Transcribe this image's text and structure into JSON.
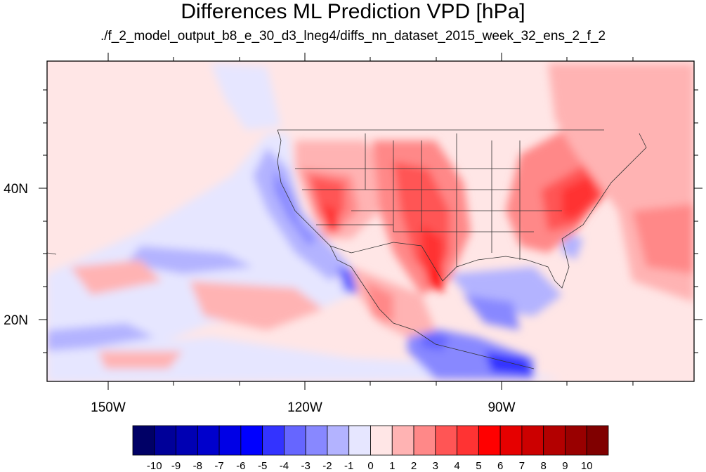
{
  "title": "Differences ML Prediction VPD [hPa]",
  "subtitle": "./f_2_model_output_b8_e_30_d3_lneg4/diffs_nn_dataset_2015_week_32_ens_2_f_2",
  "map": {
    "x_tick_labels": [
      "150W",
      "120W",
      "90W"
    ],
    "y_tick_labels": [
      "40N",
      "20N"
    ]
  },
  "colorbar": {
    "colors": [
      "#000066",
      "#000099",
      "#0000b3",
      "#0000cc",
      "#0000e6",
      "#0000ff",
      "#3333ff",
      "#6666ff",
      "#8888ff",
      "#b3b3ff",
      "#e6e6ff",
      "#ffe6e6",
      "#ffb3b3",
      "#ff8888",
      "#ff5555",
      "#ff3333",
      "#ff0000",
      "#e60000",
      "#cc0000",
      "#b30000",
      "#990000",
      "#800000"
    ],
    "labels": [
      "-10",
      "-9",
      "-8",
      "-7",
      "-6",
      "-5",
      "-4",
      "-3",
      "-2",
      "-1",
      "0",
      "1",
      "2",
      "3",
      "4",
      "5",
      "6",
      "7",
      "8",
      "9",
      "10"
    ]
  }
}
